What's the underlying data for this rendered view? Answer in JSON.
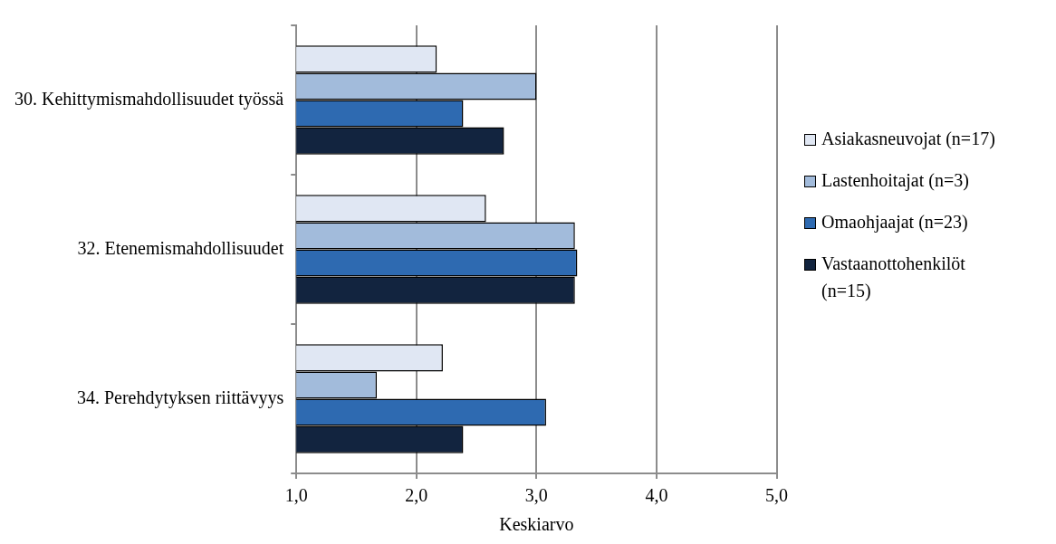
{
  "chart_data": {
    "type": "bar",
    "orientation": "horizontal",
    "xlabel": "Keskiarvo",
    "categories": [
      "30. Kehittymismahdollisuudet työssä",
      "32. Etenemismahdollisuudet",
      "34. Perehdytyksen riittävyys"
    ],
    "series": [
      {
        "name": "Asiakasneuvojat (n=17)",
        "color": "#e0e7f3",
        "values": [
          2.17,
          2.58,
          2.22
        ]
      },
      {
        "name": "Lastenhoitajat (n=3)",
        "color": "#a2bbdb",
        "values": [
          3.0,
          3.32,
          1.67
        ]
      },
      {
        "name": "Omaohjaajat (n=23)",
        "color": "#2e6ab1",
        "values": [
          2.39,
          3.34,
          3.08
        ]
      },
      {
        "name": "Vastaanottohenkilöt (n=15)",
        "color": "#12243f",
        "values": [
          2.73,
          3.32,
          2.39
        ]
      }
    ],
    "xlim": [
      1,
      5
    ],
    "xticks": [
      {
        "value": 1,
        "label": "1,0"
      },
      {
        "value": 2,
        "label": "2,0"
      },
      {
        "value": 3,
        "label": "3,0"
      },
      {
        "value": 4,
        "label": "4,0"
      },
      {
        "value": 5,
        "label": "5,0"
      }
    ],
    "grid": "x",
    "legend": "right"
  }
}
